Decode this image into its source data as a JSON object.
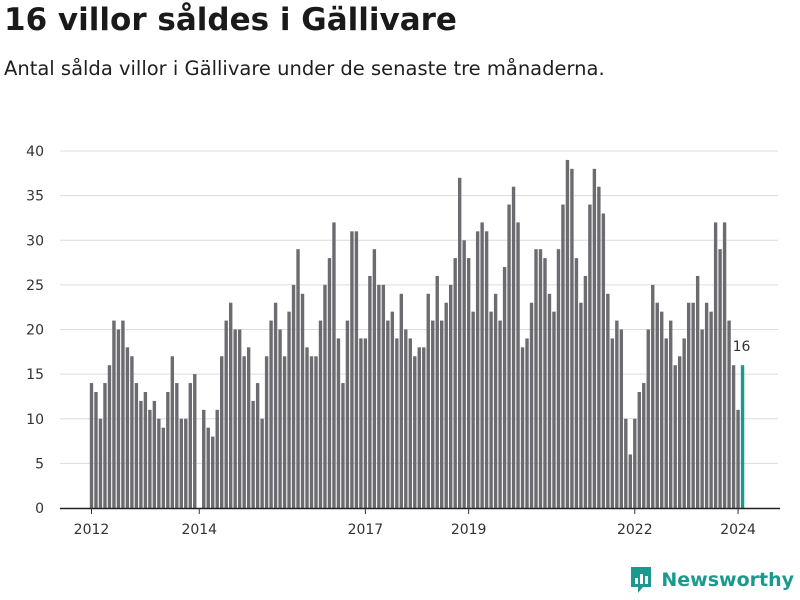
{
  "chart_data": {
    "type": "bar",
    "title": "16 villor såldes i Gällivare",
    "subtitle": "Antal sålda villor i Gällivare under de senaste tre månaderna.",
    "xlabel": "",
    "ylabel": "",
    "ylim": [
      0,
      40
    ],
    "yticks": [
      0,
      5,
      10,
      15,
      20,
      25,
      30,
      35,
      40
    ],
    "xticks": [
      {
        "label": "2012",
        "index": 0
      },
      {
        "label": "2014",
        "index": 24
      },
      {
        "label": "2017",
        "index": 61
      },
      {
        "label": "2019",
        "index": 84
      },
      {
        "label": "2022",
        "index": 121
      },
      {
        "label": "2024",
        "index": 144
      }
    ],
    "highlight_label": "16",
    "values": [
      14,
      13,
      10,
      14,
      16,
      21,
      20,
      21,
      18,
      17,
      14,
      12,
      13,
      11,
      12,
      10,
      9,
      13,
      17,
      14,
      10,
      10,
      14,
      15,
      0,
      11,
      9,
      8,
      11,
      17,
      21,
      23,
      20,
      20,
      17,
      18,
      12,
      14,
      10,
      17,
      21,
      23,
      20,
      17,
      22,
      25,
      29,
      24,
      18,
      17,
      17,
      21,
      25,
      28,
      32,
      19,
      14,
      21,
      31,
      31,
      19,
      19,
      26,
      29,
      25,
      25,
      21,
      22,
      19,
      24,
      20,
      19,
      17,
      18,
      18,
      24,
      21,
      26,
      21,
      23,
      25,
      28,
      37,
      30,
      28,
      22,
      31,
      32,
      31,
      22,
      24,
      21,
      27,
      34,
      36,
      32,
      18,
      19,
      23,
      29,
      29,
      28,
      24,
      22,
      29,
      34,
      39,
      38,
      28,
      23,
      26,
      34,
      38,
      36,
      33,
      24,
      19,
      21,
      20,
      10,
      6,
      10,
      13,
      14,
      20,
      25,
      23,
      22,
      19,
      21,
      16,
      17,
      19,
      23,
      23,
      26,
      20,
      23,
      22,
      32,
      29,
      32,
      21,
      16,
      11,
      16
    ]
  },
  "brand": {
    "name": "Newsworthy",
    "color": "#1a9a8f",
    "bar_color": "#6c6b70"
  }
}
